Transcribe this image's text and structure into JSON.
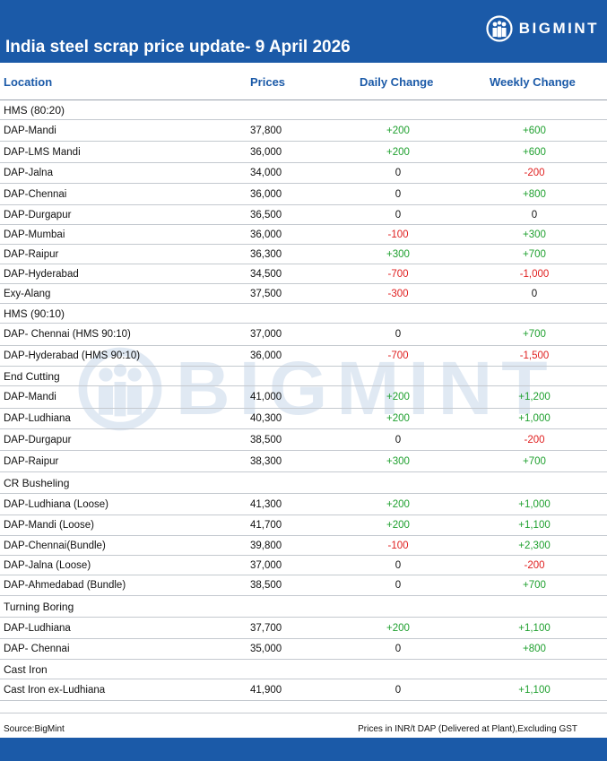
{
  "header": {
    "title": "India steel scrap price update- 9 April 2026",
    "brand": "BIGMINT"
  },
  "columns": {
    "location": "Location",
    "prices": "Prices",
    "daily": "Daily Change",
    "weekly": "Weekly Change"
  },
  "colors": {
    "primary": "#1b5aa8",
    "positive": "#1fa02f",
    "negative": "#e02020"
  },
  "rows": [
    {
      "type": "section",
      "label": "HMS (80:20)"
    },
    {
      "type": "data",
      "location": "DAP-Mandi",
      "price": "37,800",
      "daily": "+200",
      "weekly": "+600"
    },
    {
      "type": "data",
      "location": "DAP-LMS Mandi",
      "price": "36,000",
      "daily": "+200",
      "weekly": "+600"
    },
    {
      "type": "data",
      "location": "DAP-Jalna",
      "price": "34,000",
      "daily": "0",
      "weekly": "-200"
    },
    {
      "type": "data",
      "location": "DAP-Chennai",
      "price": "36,000",
      "daily": "0",
      "weekly": "+800"
    },
    {
      "type": "data",
      "location": "DAP-Durgapur",
      "price": "36,500",
      "daily": "0",
      "weekly": "0"
    },
    {
      "type": "data",
      "location": "DAP-Mumbai",
      "price": "36,000",
      "daily": "-100",
      "weekly": "+300"
    },
    {
      "type": "data",
      "location": "DAP-Raipur",
      "price": "36,300",
      "daily": "+300",
      "weekly": "+700"
    },
    {
      "type": "data",
      "location": "DAP-Hyderabad",
      "price": "34,500",
      "daily": "-700",
      "weekly": "-1,000"
    },
    {
      "type": "data",
      "location": "Exy-Alang",
      "price": "37,500",
      "daily": "-300",
      "weekly": "0"
    },
    {
      "type": "section",
      "label": "HMS (90:10)"
    },
    {
      "type": "data",
      "location": "DAP- Chennai  (HMS 90:10)",
      "price": "37,000",
      "daily": "0",
      "weekly": "+700"
    },
    {
      "type": "data",
      "location": "DAP-Hyderabad (HMS 90:10)",
      "price": "36,000",
      "daily": "-700",
      "weekly": "-1,500"
    },
    {
      "type": "section",
      "label": "End Cutting"
    },
    {
      "type": "data",
      "location": "DAP-Mandi",
      "price": "41,000",
      "daily": "+200",
      "weekly": "+1,200"
    },
    {
      "type": "data",
      "location": "DAP-Ludhiana",
      "price": "40,300",
      "daily": "+200",
      "weekly": "+1,000"
    },
    {
      "type": "data",
      "location": "DAP-Durgapur",
      "price": "38,500",
      "daily": "0",
      "weekly": "-200"
    },
    {
      "type": "data",
      "location": "DAP-Raipur",
      "price": "38,300",
      "daily": "+300",
      "weekly": "+700"
    },
    {
      "type": "section",
      "label": "CR Busheling"
    },
    {
      "type": "data",
      "location": "DAP-Ludhiana (Loose)",
      "price": "41,300",
      "daily": "+200",
      "weekly": "+1,000"
    },
    {
      "type": "data",
      "location": "DAP-Mandi (Loose)",
      "price": "41,700",
      "daily": "+200",
      "weekly": "+1,100"
    },
    {
      "type": "data",
      "location": "DAP-Chennai(Bundle)",
      "price": "39,800",
      "daily": "-100",
      "weekly": "+2,300"
    },
    {
      "type": "data",
      "location": "DAP-Jalna (Loose)",
      "price": "37,000",
      "daily": "0",
      "weekly": "-200"
    },
    {
      "type": "data",
      "location": "DAP-Ahmedabad (Bundle)",
      "price": "38,500",
      "daily": "0",
      "weekly": "+700"
    },
    {
      "type": "section",
      "label": "Turning Boring"
    },
    {
      "type": "data",
      "location": "DAP-Ludhiana",
      "price": "37,700",
      "daily": "+200",
      "weekly": "+1,100"
    },
    {
      "type": "data",
      "location": "DAP- Chennai",
      "price": "35,000",
      "daily": "0",
      "weekly": "+800"
    },
    {
      "type": "section",
      "label": "Cast Iron"
    },
    {
      "type": "data",
      "location": "Cast Iron ex-Ludhiana",
      "price": "41,900",
      "daily": "0",
      "weekly": "+1,100"
    }
  ],
  "footer": {
    "source": "Source:BigMint",
    "note": "Prices in INR/t DAP (Delivered at Plant),Excluding GST"
  }
}
